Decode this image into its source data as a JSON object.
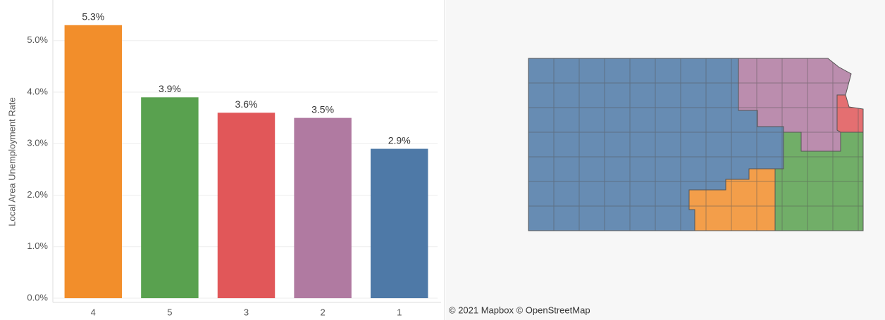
{
  "chart_data": {
    "type": "bar",
    "y_axis_label": "Local Area Unemployment Rate",
    "categories": [
      "4",
      "5",
      "3",
      "2",
      "1"
    ],
    "values": [
      5.3,
      3.9,
      3.6,
      3.5,
      2.9
    ],
    "value_labels": [
      "5.3%",
      "3.9%",
      "3.6%",
      "3.5%",
      "2.9%"
    ],
    "colors": [
      "#f28e2b",
      "#59a14f",
      "#e15759",
      "#b07aa1",
      "#4e79a7"
    ],
    "ylim": [
      0,
      5.72
    ],
    "yticks": [
      {
        "value": 0,
        "label": "0.0%"
      },
      {
        "value": 1,
        "label": "1.0%"
      },
      {
        "value": 2,
        "label": "2.0%"
      },
      {
        "value": 3,
        "label": "3.0%"
      },
      {
        "value": 4,
        "label": "4.0%"
      },
      {
        "value": 5,
        "label": "5.0%"
      }
    ],
    "grid": true
  },
  "map": {
    "attribution": "© 2021 Mapbox © OpenStreetMap"
  }
}
